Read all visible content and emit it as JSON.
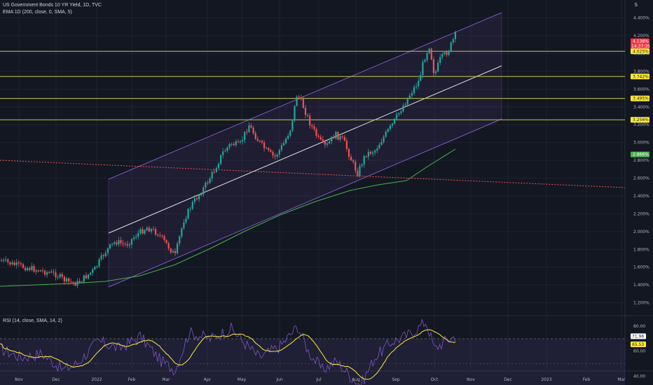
{
  "header": {
    "symbol_title": "US Government Bonds 10 YR Yield, 1D, TVC",
    "ema_legend": "EMA 1D (200, close, 0, SMA, 5)",
    "rsi_legend": "RSI (14, close, SMA, 14, 2)",
    "currency_label": "S"
  },
  "price_axis": {
    "ticks": [
      "4.400%",
      "4.200%",
      "4.000%",
      "3.800%",
      "3.600%",
      "3.400%",
      "3.200%",
      "3.000%",
      "2.800%",
      "2.600%",
      "2.400%",
      "2.200%",
      "2.000%",
      "1.800%",
      "1.600%",
      "1.400%",
      "1.200%"
    ],
    "tick_values": [
      4.4,
      4.2,
      4.0,
      3.8,
      3.6,
      3.4,
      3.2,
      3.0,
      2.8,
      2.6,
      2.4,
      2.2,
      2.0,
      1.8,
      1.6,
      1.4,
      1.2
    ]
  },
  "time_axis": {
    "labels": [
      "Nov",
      "Dec",
      "2022",
      "Feb",
      "Mar",
      "Apr",
      "May",
      "Jun",
      "Jul",
      "Aug",
      "Sep",
      "Oct",
      "Nov",
      "Dec",
      "2023",
      "Feb",
      "Mar"
    ]
  },
  "price_tags": [
    {
      "label": "4.138%",
      "sub": "14:37:35",
      "value": 4.138,
      "bg": "#f23645",
      "fg": "#ffffff"
    },
    {
      "label": "4.025%",
      "value": 4.025,
      "bg": "#ffeb3b",
      "fg": "#131722"
    },
    {
      "label": "3.742%",
      "value": 3.742,
      "bg": "#ffeb3b",
      "fg": "#131722"
    },
    {
      "label": "3.495%",
      "value": 3.495,
      "bg": "#ffeb3b",
      "fg": "#131722"
    },
    {
      "label": "3.256%",
      "value": 3.256,
      "bg": "#ffeb3b",
      "fg": "#131722"
    },
    {
      "label": "2.866%",
      "value": 2.866,
      "bg": "#4caf50",
      "fg": "#ffffff"
    }
  ],
  "rsi_axis": {
    "ticks": [
      "80.00",
      "60.00",
      "40.00"
    ],
    "tick_values": [
      80,
      60,
      40
    ],
    "tags": [
      {
        "label": "71.96",
        "value": 71.96,
        "bg": "#ffffff",
        "fg": "#131722"
      },
      {
        "label": "65.53",
        "value": 65.53,
        "bg": "#ffeb3b",
        "fg": "#131722"
      }
    ]
  },
  "colors": {
    "background": "#131722",
    "grid": "#1f2330",
    "up": "#26a69a",
    "down": "#ef5350",
    "horizontal_levels": "#c8c84a",
    "channel": "#7e57c2",
    "ema": "#4caf50",
    "rsi_line": "#7e57c2",
    "rsi_ma": "#ffeb3b",
    "dashed_trend": "#ef5350"
  },
  "chart_data": [
    {
      "type": "candlestick",
      "title": "US Government Bonds 10 YR Yield, 1D, TVC",
      "ylim": [
        1.2,
        4.4
      ],
      "y_unit": "%",
      "time_labels": [
        "Nov",
        "Dec",
        "2022",
        "Feb",
        "Mar",
        "Apr",
        "May",
        "Jun",
        "Jul",
        "Aug",
        "Sep",
        "Oct",
        "Nov",
        "Dec",
        "2023",
        "Feb",
        "Mar"
      ],
      "horizontal_levels": [
        4.025,
        3.742,
        3.495,
        3.256
      ],
      "last_price": 4.138,
      "ema_last": 2.866,
      "close_path": [
        {
          "x": "Oct",
          "y": 1.65
        },
        {
          "x": "Nov",
          "y": 1.55
        },
        {
          "x": "Dec",
          "y": 1.45
        },
        {
          "x": "2022",
          "y": 1.65
        },
        {
          "x": "Feb",
          "y": 1.95
        },
        {
          "x": "Mar",
          "y": 1.8
        },
        {
          "x": "Apr",
          "y": 2.7
        },
        {
          "x": "May",
          "y": 2.95
        },
        {
          "x": "Jun",
          "y": 3.1
        },
        {
          "x": "Jun (mid)",
          "y": 3.48
        },
        {
          "x": "Jul",
          "y": 2.95
        },
        {
          "x": "Aug",
          "y": 2.6
        },
        {
          "x": "Sep",
          "y": 3.2
        },
        {
          "x": "Oct",
          "y": 3.95
        },
        {
          "x": "Oct (late)",
          "y": 4.14
        }
      ]
    },
    {
      "type": "line",
      "title": "RSI (14, close, SMA, 14, 2)",
      "ylim": [
        30,
        85
      ],
      "rsi_last": 71.96,
      "rsi_ma_last": 65.53
    }
  ]
}
